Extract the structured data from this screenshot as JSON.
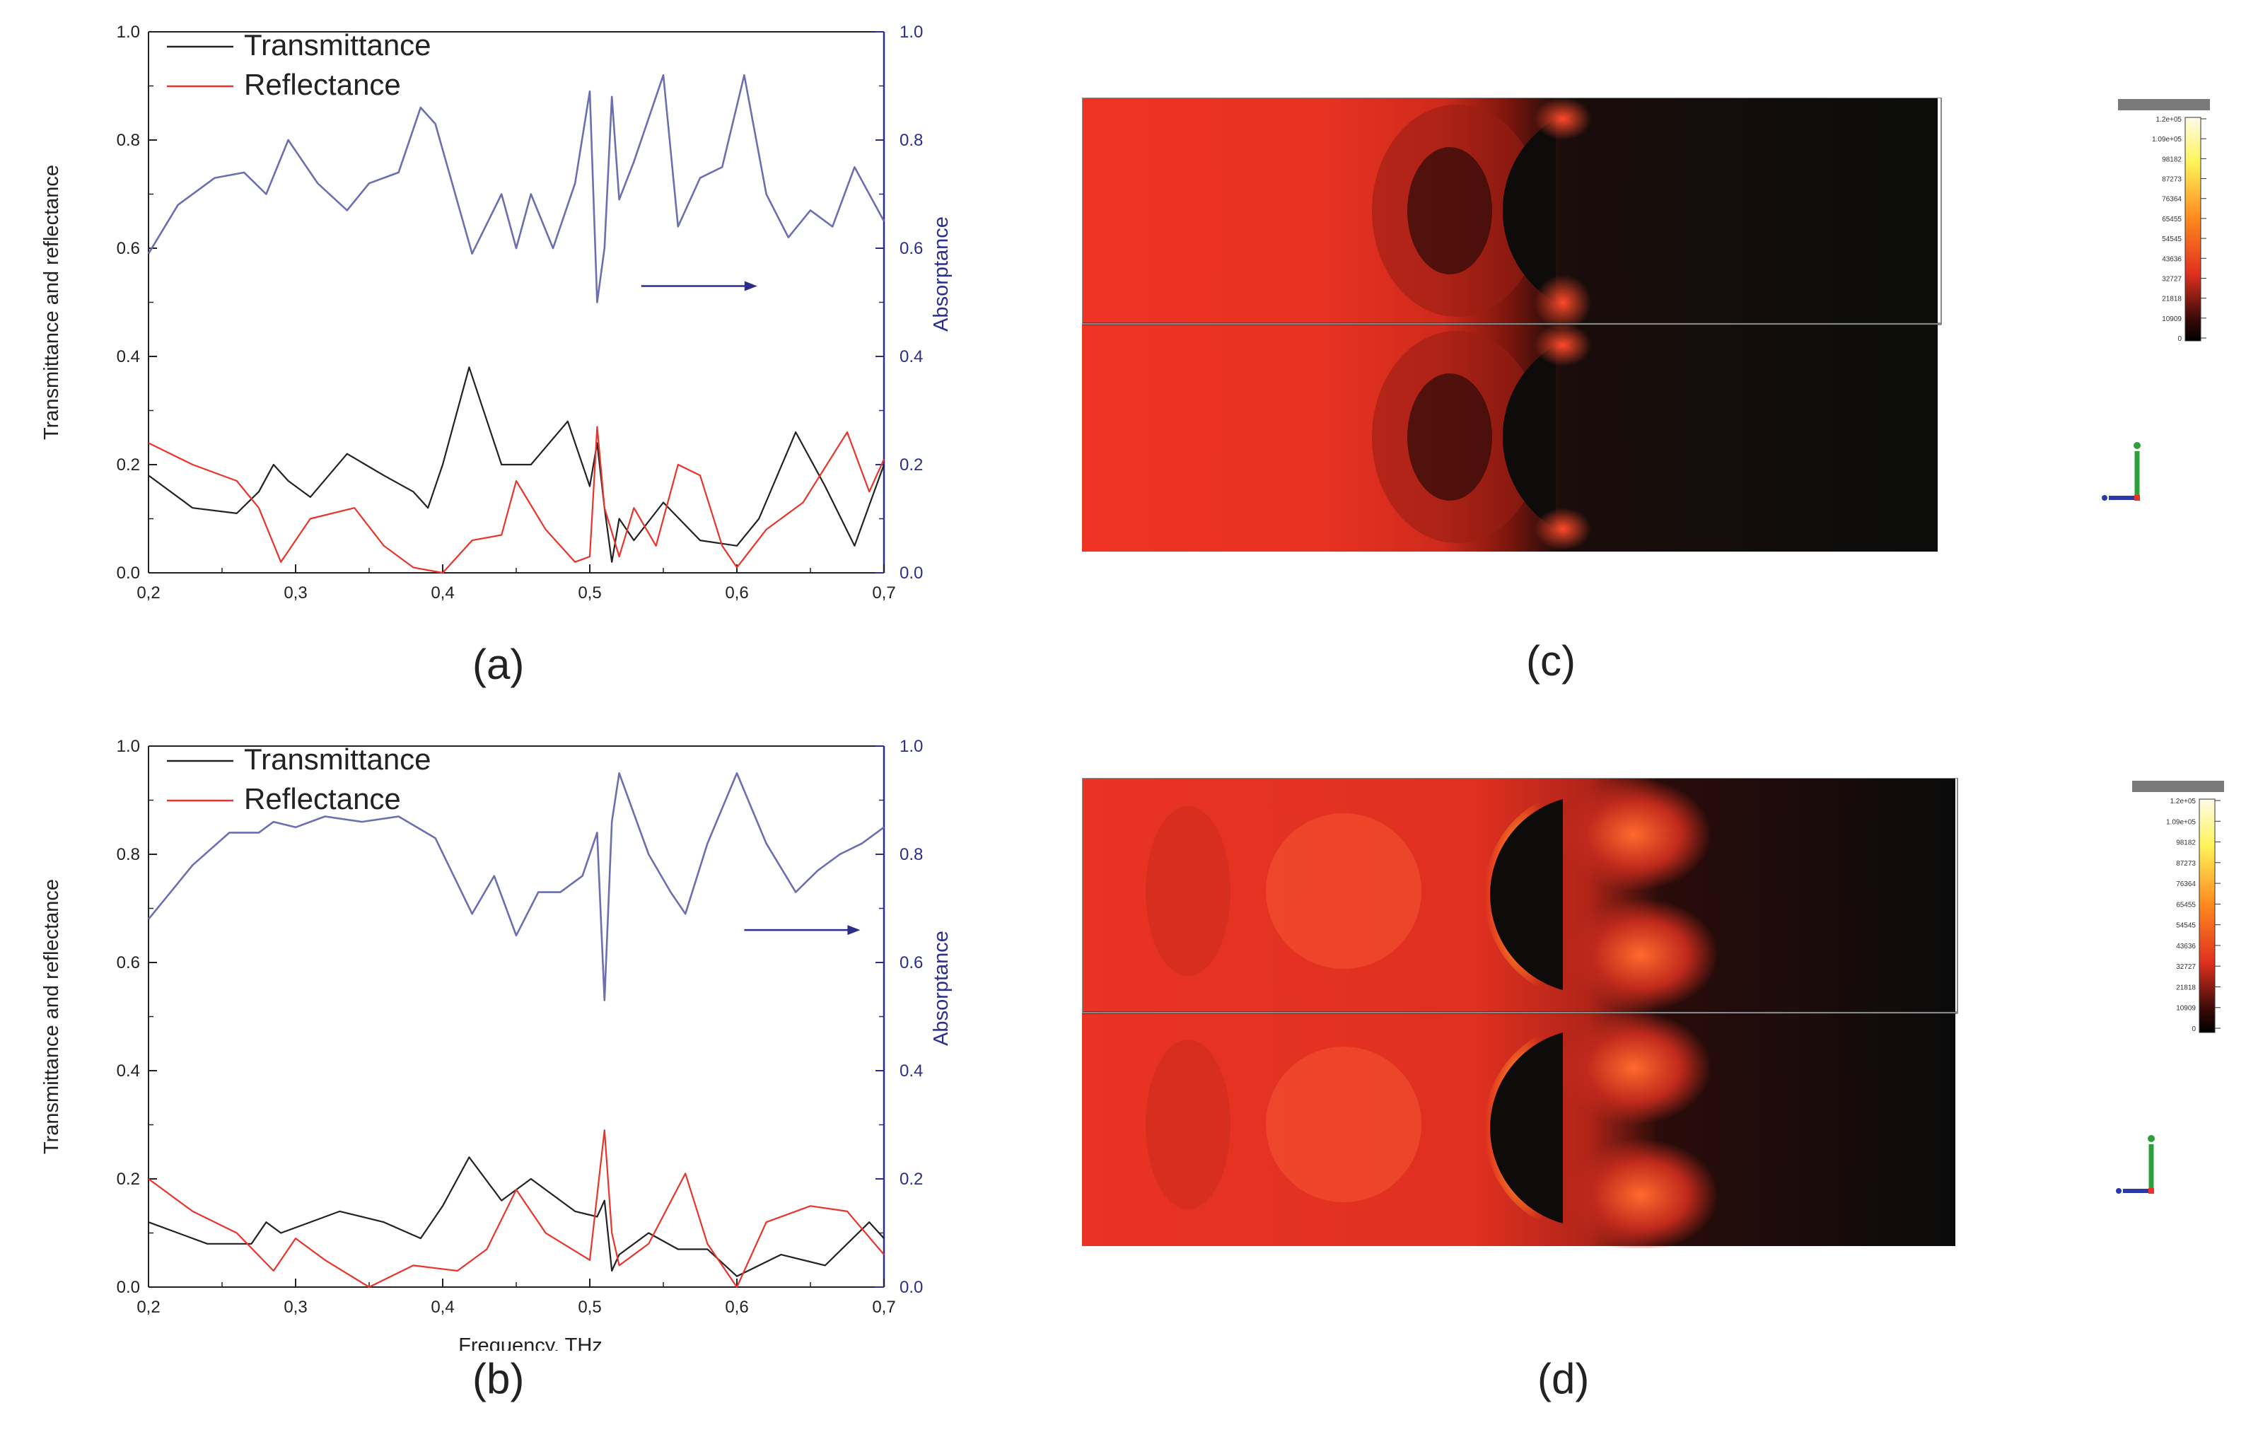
{
  "figure": {
    "panel_labels": {
      "a": "(a)",
      "b": "(b)",
      "c": "(c)",
      "d": "(d)"
    }
  },
  "chart_data": [
    {
      "panel": "(a)",
      "type": "line",
      "xlabel": "",
      "ylabel": "Transmittance and reflectance",
      "y2label": "Absorptance",
      "xlim": [
        0.2,
        0.7
      ],
      "ylim": [
        0.0,
        1.0
      ],
      "y2lim": [
        0.0,
        1.0
      ],
      "xticks": [
        "0,2",
        "0,3",
        "0,4",
        "0,5",
        "0,6",
        "0,7"
      ],
      "yticks": [
        "0.0",
        "0.2",
        "0.4",
        "0.6",
        "0.8",
        "1.0"
      ],
      "y2ticks": [
        "0.0",
        "0.2",
        "0.4",
        "0.6",
        "0.8",
        "1.0"
      ],
      "legend": [
        "Transmittance",
        "Reflectance"
      ],
      "series": [
        {
          "name": "Transmittance",
          "color": "#222222",
          "x": [
            0.2,
            0.23,
            0.26,
            0.275,
            0.285,
            0.295,
            0.31,
            0.335,
            0.36,
            0.38,
            0.39,
            0.4,
            0.418,
            0.44,
            0.46,
            0.485,
            0.5,
            0.505,
            0.51,
            0.515,
            0.52,
            0.53,
            0.55,
            0.575,
            0.6,
            0.615,
            0.64,
            0.66,
            0.68,
            0.7
          ],
          "y": [
            0.18,
            0.12,
            0.11,
            0.15,
            0.2,
            0.17,
            0.14,
            0.22,
            0.18,
            0.15,
            0.12,
            0.2,
            0.38,
            0.2,
            0.2,
            0.28,
            0.16,
            0.24,
            0.12,
            0.02,
            0.1,
            0.06,
            0.13,
            0.06,
            0.05,
            0.1,
            0.26,
            0.16,
            0.05,
            0.2
          ]
        },
        {
          "name": "Reflectance",
          "color": "#e8342a",
          "x": [
            0.2,
            0.23,
            0.26,
            0.275,
            0.29,
            0.31,
            0.34,
            0.36,
            0.38,
            0.4,
            0.42,
            0.44,
            0.45,
            0.47,
            0.49,
            0.5,
            0.505,
            0.51,
            0.52,
            0.53,
            0.545,
            0.56,
            0.575,
            0.59,
            0.6,
            0.62,
            0.645,
            0.675,
            0.69,
            0.7
          ],
          "y": [
            0.24,
            0.2,
            0.17,
            0.12,
            0.02,
            0.1,
            0.12,
            0.05,
            0.01,
            0.0,
            0.06,
            0.07,
            0.17,
            0.08,
            0.02,
            0.03,
            0.27,
            0.12,
            0.03,
            0.12,
            0.05,
            0.2,
            0.18,
            0.05,
            0.01,
            0.08,
            0.13,
            0.26,
            0.15,
            0.21
          ]
        },
        {
          "name": "Absorptance",
          "color": "#6b6fb0",
          "axis": "right",
          "x": [
            0.2,
            0.22,
            0.245,
            0.265,
            0.28,
            0.295,
            0.315,
            0.335,
            0.35,
            0.37,
            0.385,
            0.395,
            0.42,
            0.44,
            0.45,
            0.46,
            0.475,
            0.49,
            0.5,
            0.505,
            0.51,
            0.515,
            0.52,
            0.53,
            0.55,
            0.56,
            0.575,
            0.59,
            0.605,
            0.62,
            0.635,
            0.65,
            0.665,
            0.68,
            0.7
          ],
          "y": [
            0.59,
            0.68,
            0.73,
            0.74,
            0.7,
            0.8,
            0.72,
            0.67,
            0.72,
            0.74,
            0.86,
            0.83,
            0.59,
            0.7,
            0.6,
            0.7,
            0.6,
            0.72,
            0.89,
            0.5,
            0.6,
            0.88,
            0.69,
            0.76,
            0.92,
            0.64,
            0.73,
            0.75,
            0.92,
            0.7,
            0.62,
            0.67,
            0.64,
            0.75,
            0.65
          ]
        }
      ],
      "annotation": "arrow pointing right to absorptance axis"
    },
    {
      "panel": "(b)",
      "type": "line",
      "xlabel": "Frequency, THz",
      "ylabel": "Transmittance and reflectance",
      "y2label": "Absorptance",
      "xlim": [
        0.2,
        0.7
      ],
      "ylim": [
        0.0,
        1.0
      ],
      "y2lim": [
        0.0,
        1.0
      ],
      "xticks": [
        "0,2",
        "0,3",
        "0,4",
        "0,5",
        "0,6",
        "0,7"
      ],
      "yticks": [
        "0.0",
        "0.2",
        "0.4",
        "0.6",
        "0.8",
        "1.0"
      ],
      "y2ticks": [
        "0.0",
        "0.2",
        "0.4",
        "0.6",
        "0.8",
        "1.0"
      ],
      "legend": [
        "Transmittance",
        "Reflectance"
      ],
      "series": [
        {
          "name": "Transmittance",
          "color": "#222222",
          "x": [
            0.2,
            0.24,
            0.27,
            0.28,
            0.29,
            0.3,
            0.33,
            0.36,
            0.385,
            0.4,
            0.418,
            0.44,
            0.46,
            0.49,
            0.505,
            0.51,
            0.515,
            0.52,
            0.54,
            0.56,
            0.58,
            0.6,
            0.63,
            0.66,
            0.69,
            0.7
          ],
          "y": [
            0.12,
            0.08,
            0.08,
            0.12,
            0.1,
            0.11,
            0.14,
            0.12,
            0.09,
            0.15,
            0.24,
            0.16,
            0.2,
            0.14,
            0.13,
            0.16,
            0.03,
            0.06,
            0.1,
            0.07,
            0.07,
            0.02,
            0.06,
            0.04,
            0.12,
            0.09
          ]
        },
        {
          "name": "Reflectance",
          "color": "#e8342a",
          "x": [
            0.2,
            0.23,
            0.26,
            0.285,
            0.3,
            0.32,
            0.35,
            0.38,
            0.41,
            0.43,
            0.45,
            0.47,
            0.5,
            0.51,
            0.515,
            0.52,
            0.54,
            0.565,
            0.58,
            0.6,
            0.62,
            0.65,
            0.675,
            0.7
          ],
          "y": [
            0.2,
            0.14,
            0.1,
            0.03,
            0.09,
            0.05,
            0.0,
            0.04,
            0.03,
            0.07,
            0.18,
            0.1,
            0.05,
            0.29,
            0.1,
            0.04,
            0.08,
            0.21,
            0.08,
            0.0,
            0.12,
            0.15,
            0.14,
            0.06
          ]
        },
        {
          "name": "Absorptance",
          "color": "#6b6fb0",
          "axis": "right",
          "x": [
            0.2,
            0.23,
            0.255,
            0.275,
            0.285,
            0.3,
            0.32,
            0.345,
            0.37,
            0.395,
            0.42,
            0.435,
            0.45,
            0.465,
            0.48,
            0.495,
            0.505,
            0.51,
            0.515,
            0.52,
            0.54,
            0.555,
            0.565,
            0.58,
            0.6,
            0.62,
            0.64,
            0.655,
            0.67,
            0.685,
            0.7
          ],
          "y": [
            0.68,
            0.78,
            0.84,
            0.84,
            0.86,
            0.85,
            0.87,
            0.86,
            0.87,
            0.83,
            0.69,
            0.76,
            0.65,
            0.73,
            0.73,
            0.76,
            0.84,
            0.53,
            0.86,
            0.95,
            0.8,
            0.73,
            0.69,
            0.82,
            0.95,
            0.82,
            0.73,
            0.77,
            0.8,
            0.82,
            0.85
          ]
        }
      ],
      "annotation": "arrow pointing right to absorptance axis"
    }
  ],
  "field_maps": {
    "c": {
      "colorbar_ticks": [
        "1.2e+05",
        "1.09e+05",
        "98182",
        "87273",
        "76364",
        "65455",
        "54545",
        "43636",
        "32727",
        "21818",
        "10909",
        "0"
      ]
    },
    "d": {
      "colorbar_ticks": [
        "1.2e+05",
        "1.09e+05",
        "98182",
        "87273",
        "76364",
        "65455",
        "54545",
        "43636",
        "32727",
        "21818",
        "10909",
        "0"
      ]
    }
  }
}
